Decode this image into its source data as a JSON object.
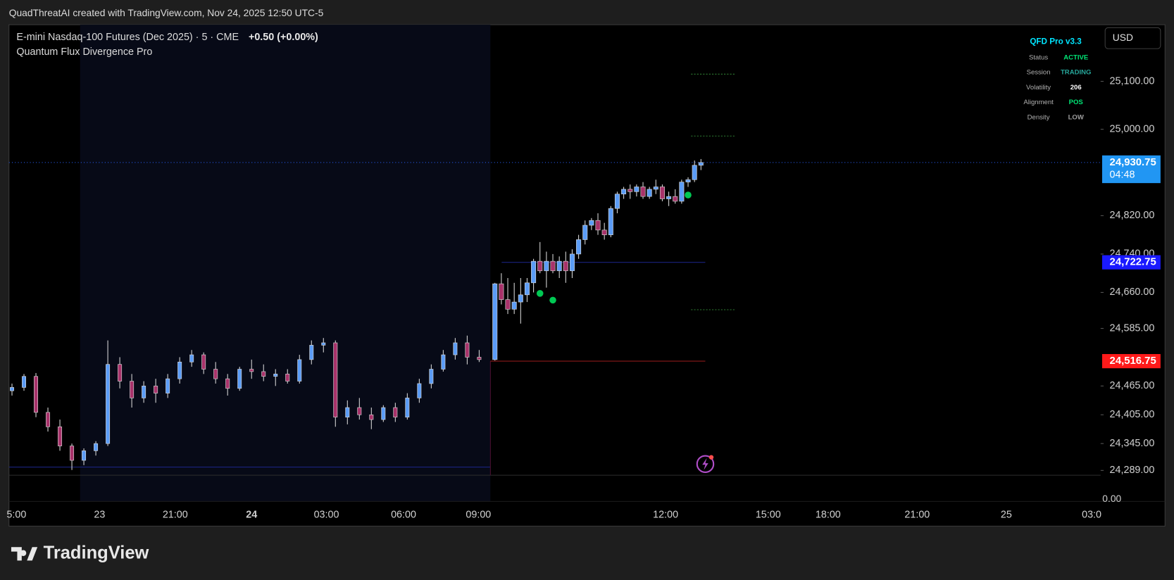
{
  "header": {
    "attribution": "QuadThreatAI created with TradingView.com, Nov 24, 2025 12:50 UTC-5"
  },
  "legend": {
    "symbol": "E-mini Nasdaq-100 Futures (Dec 2025) · 5 · CME",
    "change": "+0.50 (+0.00%)",
    "indicator": "Quantum Flux Divergence Pro"
  },
  "currency": "USD",
  "brand": "TradingView",
  "info_panel": {
    "title": "QFD Pro v3.3",
    "rows": [
      {
        "label": "Status",
        "value": "ACTIVE",
        "color": "#00e676"
      },
      {
        "label": "Session",
        "value": "TRADING",
        "color": "#26a69a"
      },
      {
        "label": "Volatility",
        "value": "206",
        "color": "#ffffff"
      },
      {
        "label": "Alignment",
        "value": "POS",
        "color": "#00e676"
      },
      {
        "label": "Density",
        "value": "LOW",
        "color": "#9e9e9e"
      }
    ]
  },
  "chart_data": {
    "type": "candlestick",
    "up_color": "#5b9cf6",
    "down_color": "#a8326a",
    "wick_color": "#d8d8d8",
    "candles": [
      [
        24455,
        24470,
        24445,
        24462
      ],
      [
        24462,
        24490,
        24455,
        24485
      ],
      [
        24485,
        24492,
        24400,
        24410
      ],
      [
        24410,
        24420,
        24370,
        24380
      ],
      [
        24380,
        24395,
        24330,
        24340
      ],
      [
        24340,
        24345,
        24290,
        24310
      ],
      [
        24310,
        24335,
        24300,
        24330
      ],
      [
        24330,
        24350,
        24320,
        24345
      ],
      [
        24345,
        24560,
        24340,
        24510
      ],
      [
        24510,
        24525,
        24460,
        24475
      ],
      [
        24475,
        24490,
        24420,
        24440
      ],
      [
        24440,
        24475,
        24430,
        24465
      ],
      [
        24465,
        24480,
        24430,
        24450
      ],
      [
        24450,
        24490,
        24440,
        24480
      ],
      [
        24480,
        24525,
        24470,
        24515
      ],
      [
        24515,
        24540,
        24505,
        24530
      ],
      [
        24530,
        24535,
        24490,
        24500
      ],
      [
        24500,
        24515,
        24470,
        24480
      ],
      [
        24480,
        24490,
        24445,
        24460
      ],
      [
        24460,
        24505,
        24455,
        24500
      ],
      [
        24500,
        24520,
        24480,
        24495
      ],
      [
        24495,
        24510,
        24475,
        24485
      ],
      [
        24485,
        24500,
        24465,
        24490
      ],
      [
        24490,
        24500,
        24470,
        24475
      ],
      [
        24475,
        24530,
        24470,
        24520
      ],
      [
        24520,
        24560,
        24510,
        24550
      ],
      [
        24550,
        24565,
        24535,
        24555
      ],
      [
        24555,
        24560,
        24380,
        24400
      ],
      [
        24400,
        24435,
        24385,
        24420
      ],
      [
        24420,
        24440,
        24395,
        24405
      ],
      [
        24405,
        24420,
        24375,
        24395
      ],
      [
        24395,
        24425,
        24390,
        24420
      ],
      [
        24420,
        24430,
        24390,
        24400
      ],
      [
        24400,
        24450,
        24395,
        24440
      ],
      [
        24440,
        24480,
        24430,
        24470
      ],
      [
        24470,
        24510,
        24460,
        24500
      ],
      [
        24500,
        24540,
        24495,
        24530
      ],
      [
        24530,
        24565,
        24520,
        24555
      ],
      [
        24555,
        24570,
        24510,
        24525
      ],
      [
        24525,
        24540,
        24515,
        24520
      ],
      [
        24520,
        24680,
        24518,
        24678
      ],
      [
        24678,
        24700,
        24635,
        24645
      ],
      [
        24645,
        24690,
        24615,
        24625
      ],
      [
        24625,
        24680,
        24615,
        24640
      ],
      [
        24640,
        24690,
        24595,
        24655
      ],
      [
        24655,
        24690,
        24640,
        24680
      ],
      [
        24680,
        24730,
        24660,
        24725
      ],
      [
        24725,
        24765,
        24700,
        24705
      ],
      [
        24705,
        24745,
        24670,
        24725
      ],
      [
        24725,
        24740,
        24700,
        24705
      ],
      [
        24705,
        24735,
        24690,
        24725
      ],
      [
        24725,
        24745,
        24680,
        24705
      ],
      [
        24705,
        24750,
        24690,
        24740
      ],
      [
        24740,
        24780,
        24730,
        24770
      ],
      [
        24770,
        24810,
        24760,
        24800
      ],
      [
        24800,
        24815,
        24790,
        24810
      ],
      [
        24810,
        24825,
        24780,
        24790
      ],
      [
        24790,
        24805,
        24770,
        24780
      ],
      [
        24780,
        24840,
        24775,
        24835
      ],
      [
        24835,
        24870,
        24825,
        24865
      ],
      [
        24865,
        24880,
        24855,
        24875
      ],
      [
        24875,
        24885,
        24855,
        24870
      ],
      [
        24870,
        24885,
        24860,
        24880
      ],
      [
        24880,
        24890,
        24855,
        24860
      ],
      [
        24860,
        24880,
        24855,
        24875
      ],
      [
        24875,
        24895,
        24865,
        24880
      ],
      [
        24880,
        24885,
        24850,
        24855
      ],
      [
        24855,
        24870,
        24840,
        24860
      ],
      [
        24860,
        24875,
        24845,
        24850
      ],
      [
        24850,
        24895,
        24845,
        24890
      ],
      [
        24890,
        24900,
        24880,
        24895
      ],
      [
        24895,
        24935,
        24890,
        24925
      ],
      [
        24925,
        24938,
        24915,
        24930.75
      ]
    ],
    "ylim": [
      24279,
      25218
    ],
    "yticks": [
      {
        "value": 25100,
        "label": "25,100.00"
      },
      {
        "value": 25000,
        "label": "25,000.00"
      },
      {
        "value": 24820,
        "label": "24,820.00"
      },
      {
        "value": 24740,
        "label": "24,740.00"
      },
      {
        "value": 24660,
        "label": "24,660.00"
      },
      {
        "value": 24585,
        "label": "24,585.00"
      },
      {
        "value": 24465,
        "label": "24,465.00"
      },
      {
        "value": 24405,
        "label": "24,405.00"
      },
      {
        "value": 24345,
        "label": "24,345.00"
      },
      {
        "value": 24289,
        "label": "24,289.00"
      }
    ],
    "x_labels": [
      "5:00",
      "23",
      "21:00",
      "24",
      "03:00",
      "06:00",
      "09:00",
      "12:00",
      "15:00",
      "18:00",
      "21:00",
      "25",
      "03:0"
    ],
    "levels": [
      {
        "value": 24930.75,
        "label": "24,930.75",
        "countdown": "04:48",
        "color": "#2196f3"
      },
      {
        "value": 24722.75,
        "label": "24,722.75",
        "color": "#1a1aff"
      },
      {
        "value": 24516.75,
        "label": "24,516.75",
        "color": "#ff1a1a"
      }
    ],
    "range_low": 24296,
    "target_lines": [
      25115,
      24986,
      24624
    ],
    "signals": [
      {
        "bar": 47,
        "value": 24658
      },
      {
        "bar": 49,
        "value": 24644
      },
      {
        "bar": 70,
        "value": 24863
      }
    ],
    "lower_pane_label": "0.00"
  }
}
